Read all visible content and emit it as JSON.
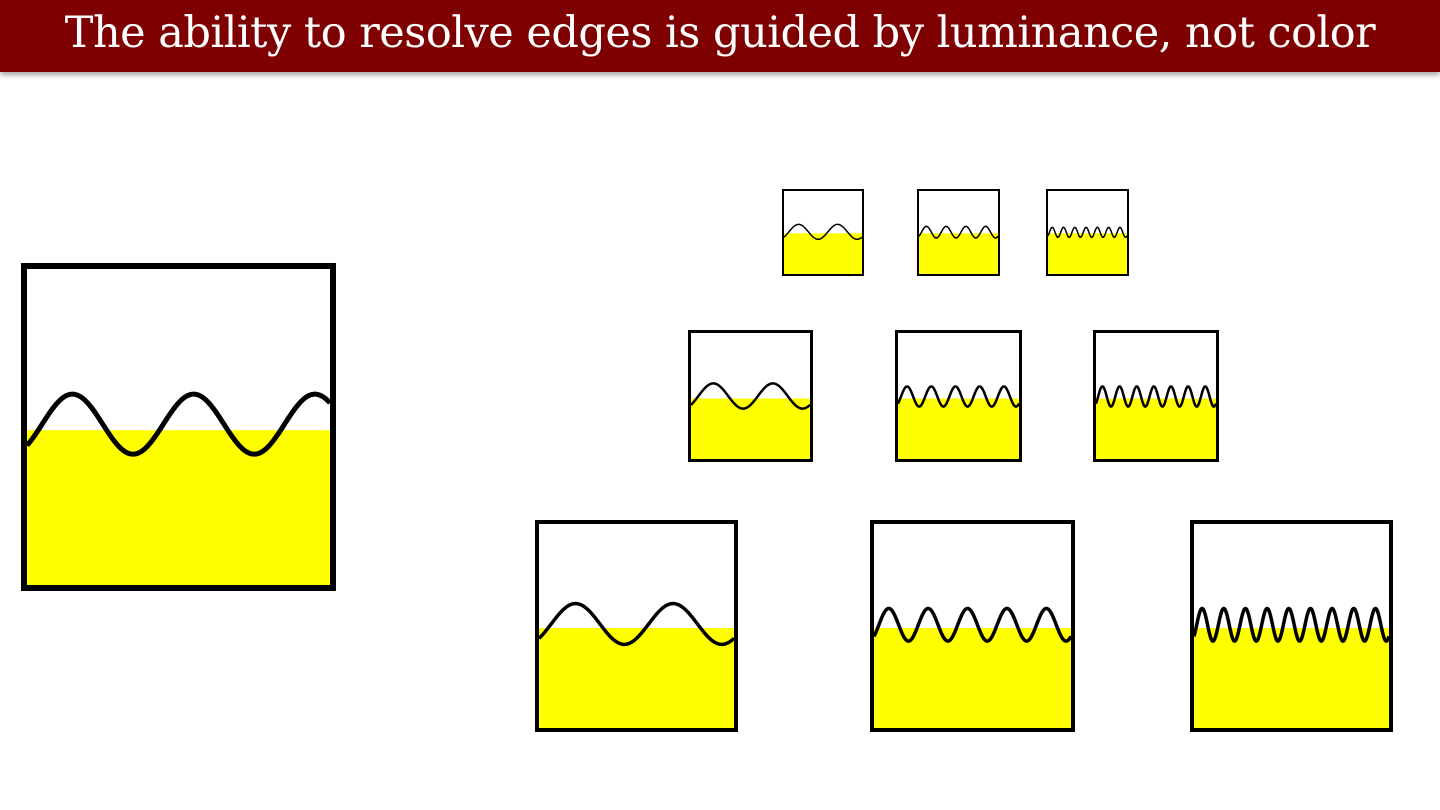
{
  "title": "The ability to resolve edges is guided by luminance, not color",
  "colors": {
    "title_bar": "#7f0000",
    "title_text": "#ffffff",
    "fill": "#ffff00",
    "line": "#000000",
    "background": "#ffffff"
  },
  "panels": [
    {
      "id": "p-large",
      "name": "large-sample-panel",
      "cycles": 2.5
    },
    {
      "id": "p-s1",
      "name": "small-panel-low-frequency",
      "cycles": 2
    },
    {
      "id": "p-s2",
      "name": "small-panel-mid-frequency",
      "cycles": 4
    },
    {
      "id": "p-s3",
      "name": "small-panel-high-frequency",
      "cycles": 7
    },
    {
      "id": "p-m1",
      "name": "medium-panel-low-frequency",
      "cycles": 2
    },
    {
      "id": "p-m2",
      "name": "medium-panel-mid-frequency",
      "cycles": 5
    },
    {
      "id": "p-m3",
      "name": "medium-panel-high-frequency",
      "cycles": 7
    },
    {
      "id": "p-b1",
      "name": "big-panel-low-frequency",
      "cycles": 2
    },
    {
      "id": "p-b2",
      "name": "big-panel-mid-frequency",
      "cycles": 5
    },
    {
      "id": "p-b3",
      "name": "big-panel-high-frequency",
      "cycles": 9
    }
  ]
}
